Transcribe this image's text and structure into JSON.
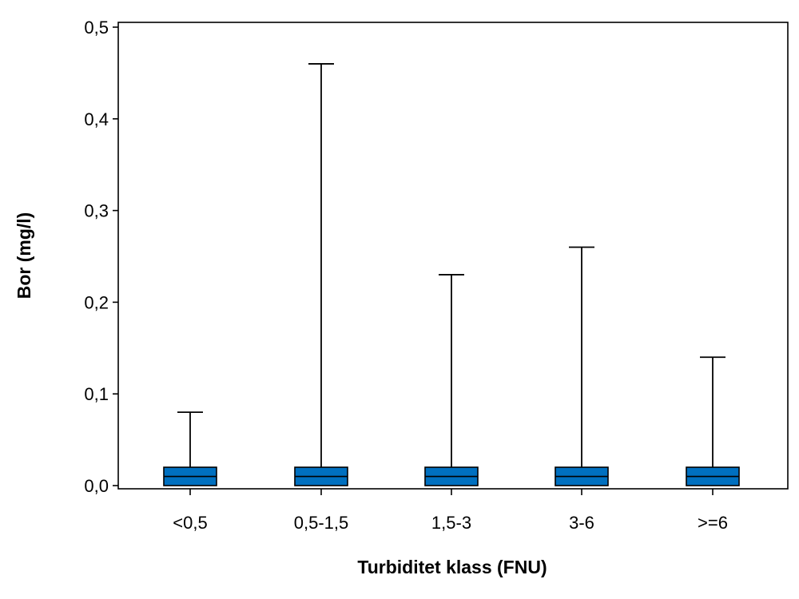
{
  "chart_data": {
    "type": "box",
    "title": "",
    "xlabel": "Turbiditet klass (FNU)",
    "ylabel": "Bor (mg/l)",
    "ylim": [
      0,
      0.5
    ],
    "yticks": [
      "0,0",
      "0,1",
      "0,2",
      "0,3",
      "0,4",
      "0,5"
    ],
    "ytick_values": [
      0.0,
      0.1,
      0.2,
      0.3,
      0.4,
      0.5
    ],
    "grid": false,
    "categories": [
      "<0,5",
      "0,5-1,5",
      "1,5-3",
      "3-6",
      ">=6"
    ],
    "series": [
      {
        "boxes": [
          {
            "min": 0.0,
            "q1": 0.0,
            "median": 0.01,
            "q3": 0.02,
            "max": 0.08
          },
          {
            "min": 0.0,
            "q1": 0.0,
            "median": 0.01,
            "q3": 0.02,
            "max": 0.46
          },
          {
            "min": 0.0,
            "q1": 0.0,
            "median": 0.01,
            "q3": 0.02,
            "max": 0.23
          },
          {
            "min": 0.0,
            "q1": 0.0,
            "median": 0.01,
            "q3": 0.02,
            "max": 0.26
          },
          {
            "min": 0.0,
            "q1": 0.0,
            "median": 0.01,
            "q3": 0.02,
            "max": 0.14
          }
        ]
      }
    ],
    "colors": {
      "box_fill": "#0070C0",
      "box_stroke": "#000000",
      "whisker": "#000000"
    }
  }
}
